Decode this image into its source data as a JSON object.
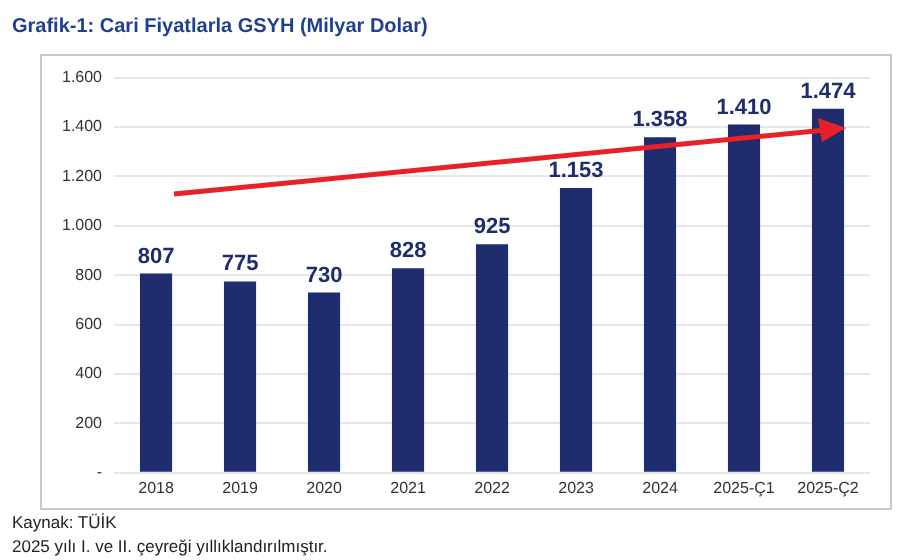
{
  "chart_data": {
    "type": "bar",
    "title": "Grafik-1: Cari Fiyatlarla GSYH (Milyar Dolar)",
    "categories": [
      "2018",
      "2019",
      "2020",
      "2021",
      "2022",
      "2023",
      "2024",
      "2025-Ç1",
      "2025-Ç2"
    ],
    "values": [
      807,
      775,
      730,
      828,
      925,
      1153,
      1358,
      1410,
      1474
    ],
    "value_labels": [
      "807",
      "775",
      "730",
      "828",
      "925",
      "1.153",
      "1.358",
      "1.410",
      "1.474"
    ],
    "color": "#1f2d6e",
    "ylim": [
      0,
      1600
    ],
    "yticks": [
      {
        "value": 0,
        "label": "-"
      },
      {
        "value": 200,
        "label": "200"
      },
      {
        "value": 400,
        "label": "400"
      },
      {
        "value": 600,
        "label": "600"
      },
      {
        "value": 800,
        "label": "800"
      },
      {
        "value": 1000,
        "label": "1.000"
      },
      {
        "value": 1200,
        "label": "1.200"
      },
      {
        "value": 1400,
        "label": "1.400"
      },
      {
        "value": 1600,
        "label": "1.600"
      }
    ],
    "grid": "y",
    "annotations": [
      "Kaynak: TÜİK",
      "2025 yılı I. ve II. çeyreği yıllıklandırılmıştır."
    ]
  }
}
